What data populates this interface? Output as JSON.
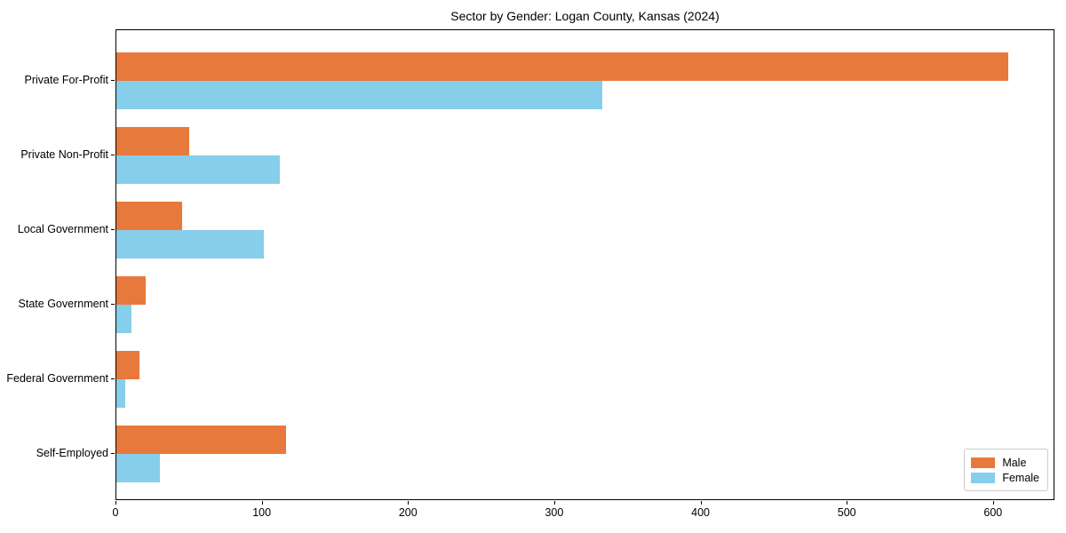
{
  "chart_data": {
    "type": "bar",
    "orientation": "horizontal",
    "title": "Sector by Gender: Logan County, Kansas (2024)",
    "categories": [
      "Private For-Profit",
      "Private Non-Profit",
      "Local Government",
      "State Government",
      "Federal Government",
      "Self-Employed"
    ],
    "series": [
      {
        "name": "Male",
        "color": "#e8793c",
        "values": [
          610,
          50,
          45,
          20,
          16,
          116
        ]
      },
      {
        "name": "Female",
        "color": "#87ceeb",
        "values": [
          332,
          112,
          101,
          10,
          6,
          30
        ]
      }
    ],
    "xlabel": "",
    "ylabel": "",
    "xlim": [
      0,
      642
    ],
    "xticks": [
      0,
      100,
      200,
      300,
      400,
      500,
      600
    ],
    "grid": false,
    "legend_position": "lower right",
    "spine_color": "#000000",
    "legend_border_color": "#cccccc"
  }
}
